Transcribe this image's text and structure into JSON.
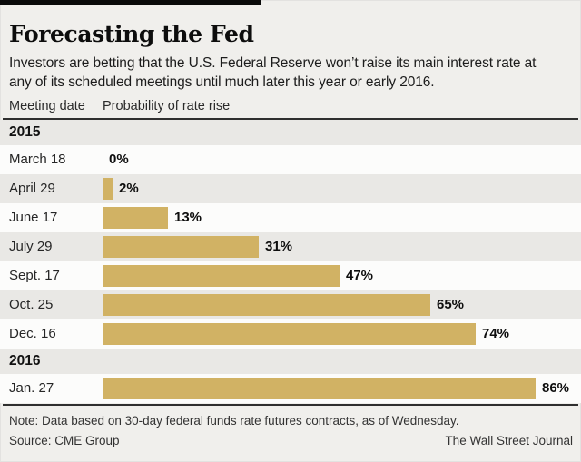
{
  "page": {
    "title": "Forecasting the Fed",
    "subtitle": "Investors are betting that the U.S. Federal Reserve won’t raise its main interest rate at any of its scheduled meetings until much later this year or early 2016.",
    "columns": {
      "meeting_date": "Meeting date",
      "probability": "Probability of rate rise"
    },
    "note": "Note: Data based on 30-day federal funds rate futures contracts, as of Wednesday.",
    "source": "Source: CME Group",
    "credit": "The Wall Street Journal"
  },
  "colors": {
    "bar": "#d1b264",
    "page_bg": "#f0efec",
    "row_stripe_bg": "#e9e8e5",
    "row_plain_bg": "#fcfcfb",
    "rule": "#2f2f2f",
    "top_accent_bar": "#0a0a0a"
  },
  "chart_data": {
    "type": "bar",
    "orientation": "horizontal",
    "title": "Forecasting the Fed",
    "xlabel": "Probability of rate rise",
    "unit": "%",
    "xlim": [
      0,
      100
    ],
    "grid": false,
    "legend": "none",
    "groups": [
      {
        "year": "2015",
        "rows": [
          {
            "label": "March 18",
            "value": 0,
            "display": "0%"
          },
          {
            "label": "April 29",
            "value": 2,
            "display": "2%"
          },
          {
            "label": "June 17",
            "value": 13,
            "display": "13%"
          },
          {
            "label": "July 29",
            "value": 31,
            "display": "31%"
          },
          {
            "label": "Sept. 17",
            "value": 47,
            "display": "47%"
          },
          {
            "label": "Oct. 25",
            "value": 65,
            "display": "65%"
          },
          {
            "label": "Dec. 16",
            "value": 74,
            "display": "74%"
          }
        ]
      },
      {
        "year": "2016",
        "rows": [
          {
            "label": "Jan. 27",
            "value": 86,
            "display": "86%"
          }
        ]
      }
    ]
  }
}
